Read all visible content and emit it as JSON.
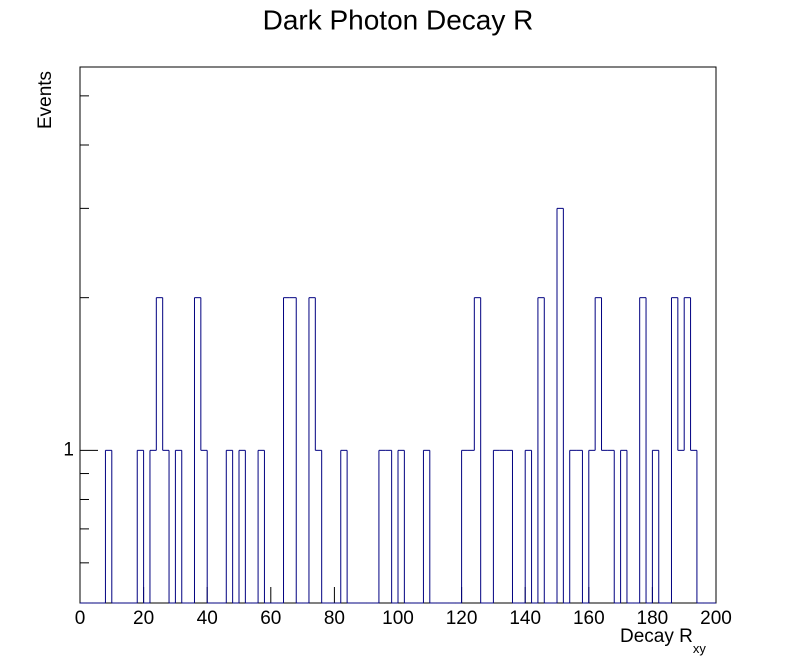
{
  "chart_data": {
    "type": "histogram",
    "title": "Dark Photon Decay R",
    "xlabel": "Decay R",
    "xlabel_sub": "xy",
    "ylabel": "Events",
    "bins": [
      0,
      2,
      4,
      6,
      8,
      10,
      12,
      14,
      16,
      18,
      20,
      22,
      24,
      26,
      28,
      30,
      32,
      34,
      36,
      38,
      40,
      42,
      44,
      46,
      48,
      50,
      52,
      54,
      56,
      58,
      60,
      62,
      64,
      66,
      68,
      70,
      72,
      74,
      76,
      78,
      80,
      82,
      84,
      86,
      88,
      90,
      92,
      94,
      96,
      98,
      100,
      102,
      104,
      106,
      108,
      110,
      112,
      114,
      116,
      118,
      120,
      122,
      124,
      126,
      128,
      130,
      132,
      134,
      136,
      138,
      140,
      142,
      144,
      146,
      148,
      150,
      152,
      154,
      156,
      158,
      160,
      162,
      164,
      166,
      168,
      170,
      172,
      174,
      176,
      178,
      180,
      182,
      184,
      186,
      188,
      190,
      192,
      194,
      196,
      198,
      200
    ],
    "values": [
      0,
      0,
      0,
      0,
      1,
      0,
      0,
      0,
      0,
      1,
      0,
      1,
      2,
      1,
      0,
      1,
      0,
      0,
      2,
      1,
      0,
      0,
      0,
      1,
      0,
      1,
      0,
      0,
      1,
      0,
      0,
      0,
      2,
      2,
      0,
      0,
      2,
      1,
      0,
      0,
      0,
      1,
      0,
      0,
      0,
      0,
      0,
      1,
      1,
      0,
      1,
      0,
      0,
      0,
      1,
      0,
      0,
      0,
      0,
      0,
      1,
      1,
      2,
      0,
      0,
      1,
      1,
      1,
      0,
      0,
      1,
      0,
      2,
      0,
      0,
      3,
      0,
      1,
      1,
      0,
      1,
      2,
      1,
      1,
      0,
      1,
      0,
      0,
      2,
      0,
      1,
      0,
      0,
      2,
      1,
      2,
      1,
      0,
      0,
      0
    ],
    "color": "#000080",
    "xlim": [
      0,
      200
    ],
    "xticks": [
      0,
      20,
      40,
      60,
      80,
      100,
      120,
      140,
      160,
      180,
      200
    ],
    "ylim": [
      0.5,
      5.7
    ],
    "ylog": true,
    "yticks": [
      1
    ],
    "yminor_ticks": [
      0.6,
      0.7,
      0.8,
      0.9,
      2,
      3,
      4,
      5
    ]
  }
}
